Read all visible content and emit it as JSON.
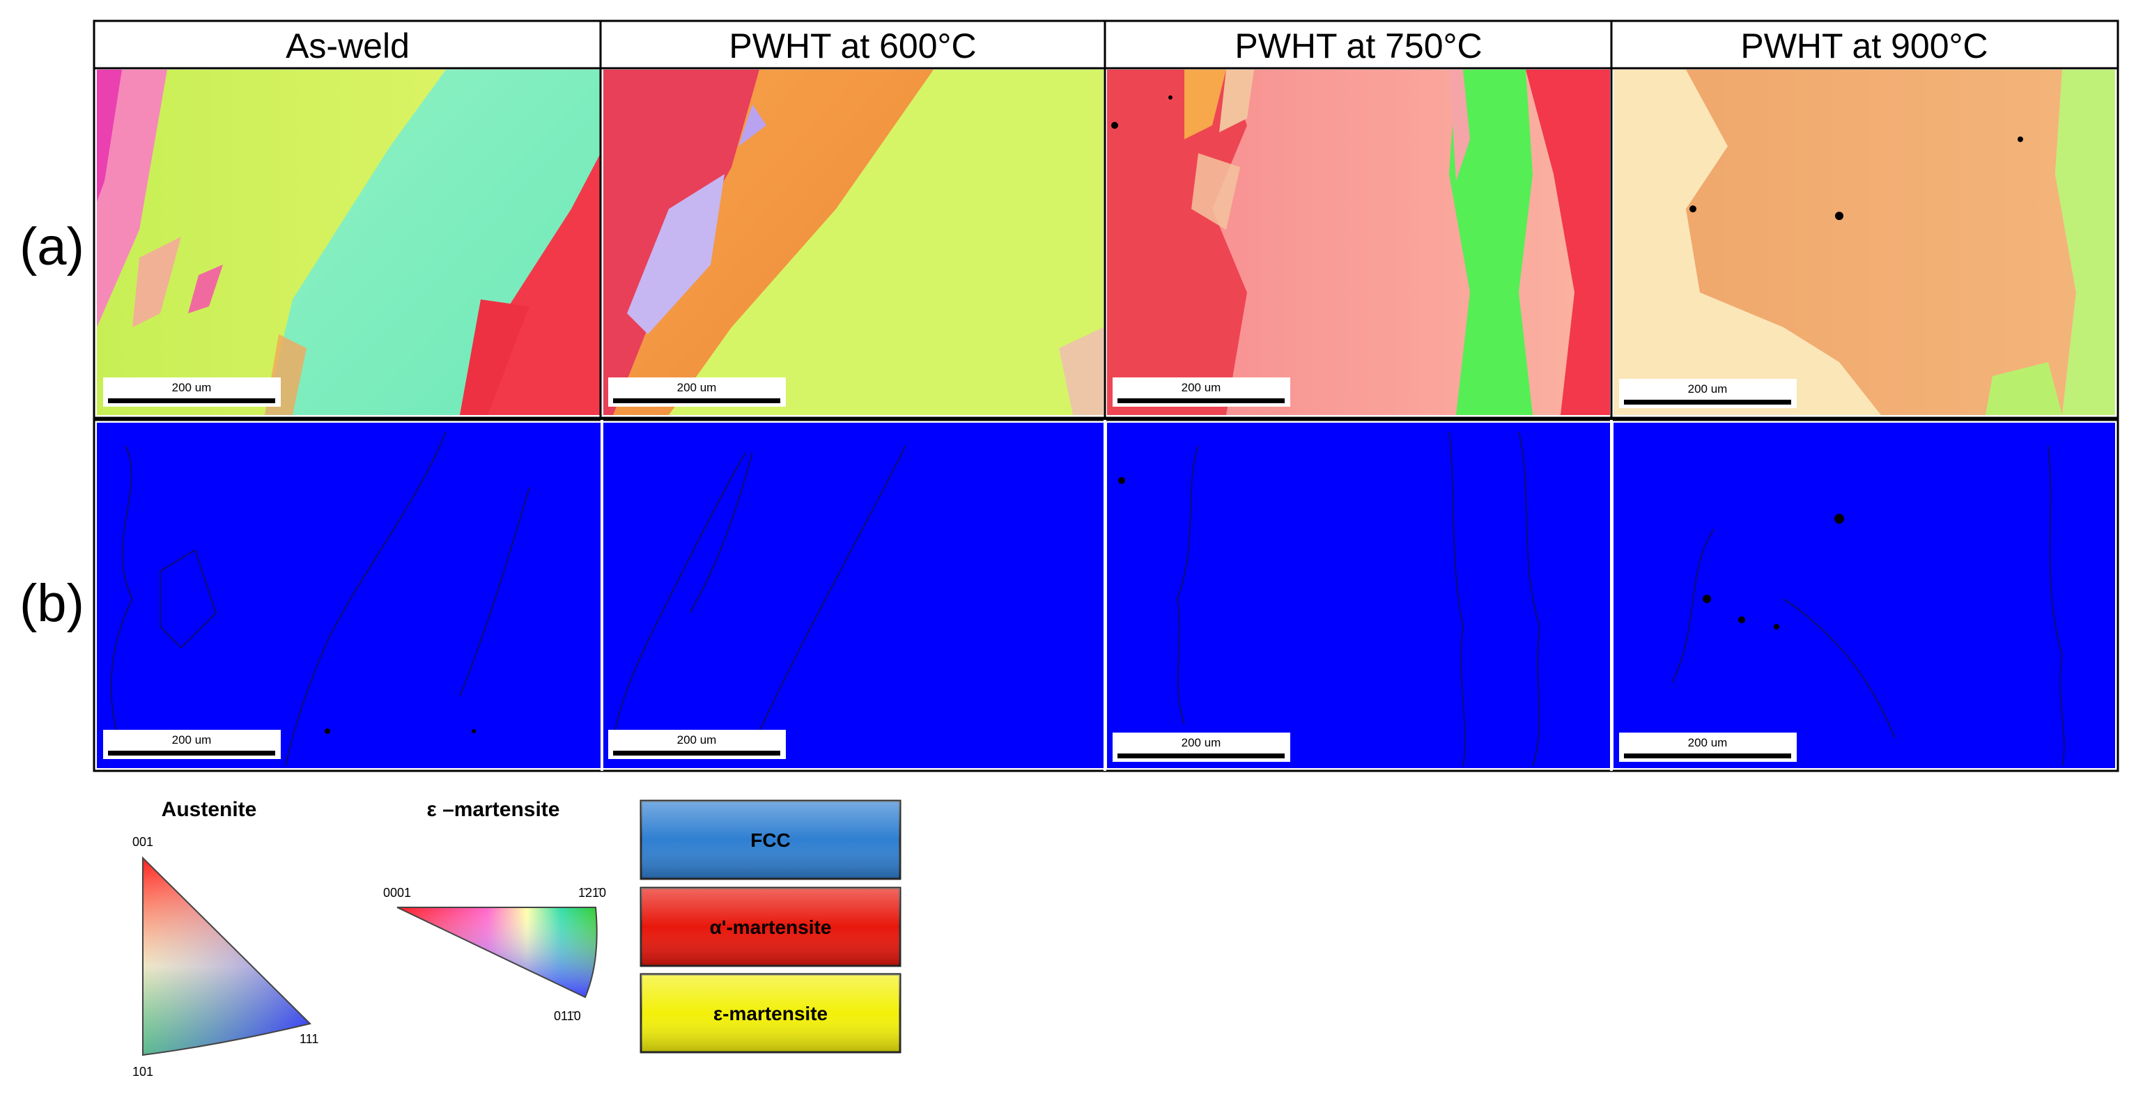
{
  "columns": [
    "As-weld",
    "PWHT at 600°C",
    "PWHT at 750°C",
    "PWHT at 900°C"
  ],
  "rows": [
    "(a)",
    "(b)"
  ],
  "scale_bar_label": "200 um",
  "legend": {
    "austenite": {
      "title": "Austenite",
      "corner_top": "001",
      "corner_bottom_left": "101",
      "corner_right": "111"
    },
    "epsilon": {
      "title": "ε –martensite",
      "corner_left": "0001",
      "corner_right": "1̄21̄0",
      "corner_bottom": "011̄0"
    },
    "phases": [
      {
        "label": "FCC",
        "color": "#2f7fd1",
        "text_color": "#000000"
      },
      {
        "label": "α'-martensite",
        "color": "#e8170c",
        "text_color": "#000000"
      },
      {
        "label": "ε-martensite",
        "color": "#f3f00a",
        "text_color": "#000000"
      }
    ]
  },
  "colors": {
    "phase_map_blue": "#0000ff",
    "frame": "#000000"
  }
}
